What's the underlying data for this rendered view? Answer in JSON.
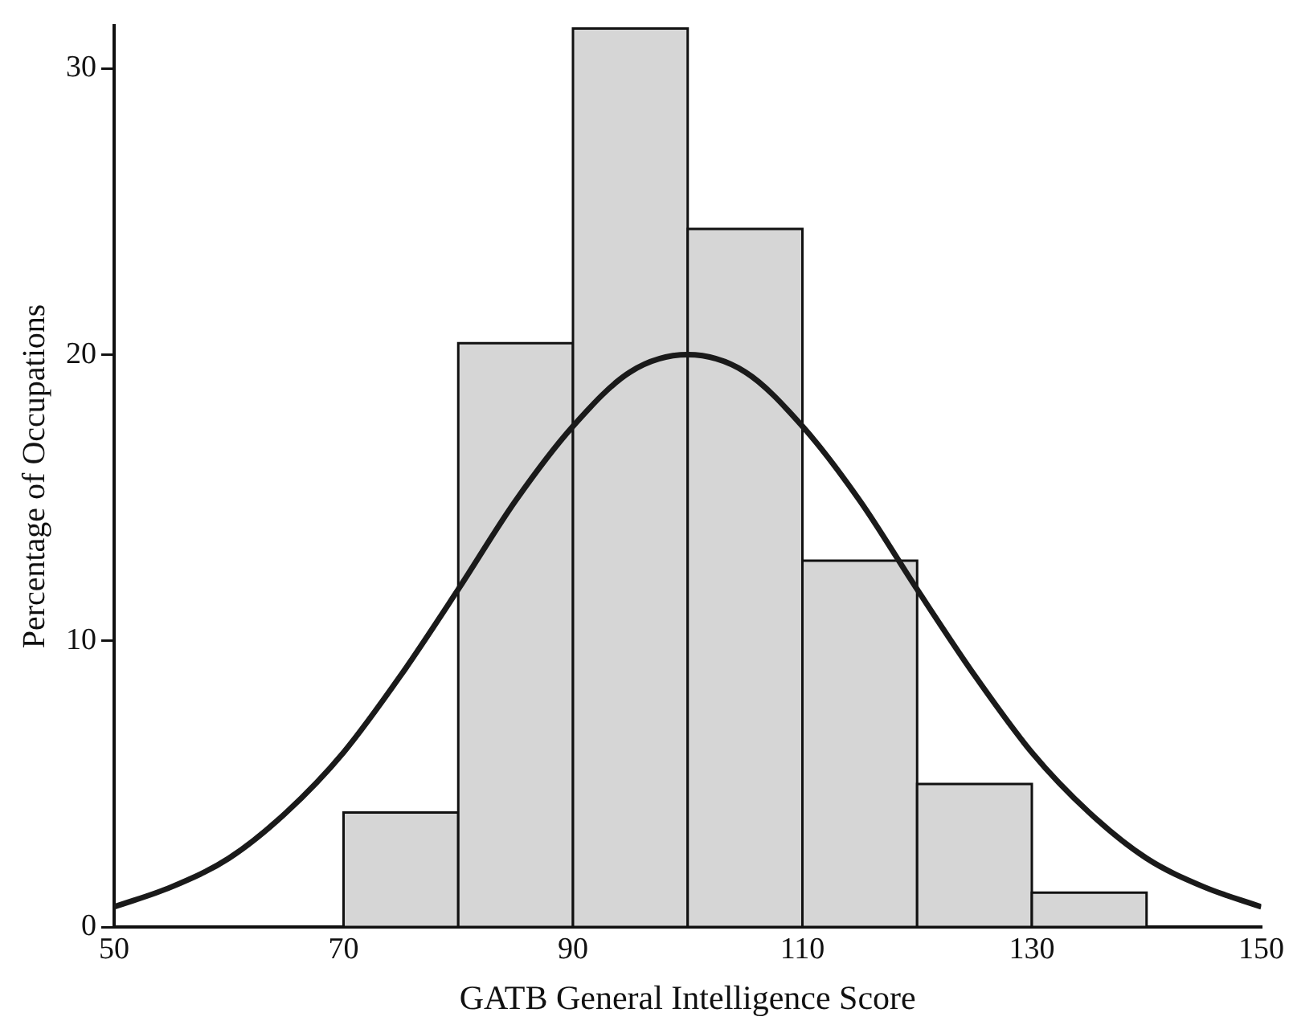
{
  "chart_data": {
    "type": "histogram",
    "xlabel": "GATB General Intelligence Score",
    "ylabel": "Percentage of Occupations",
    "bins": [
      50,
      60,
      70,
      80,
      90,
      100,
      110,
      120,
      130,
      140,
      150
    ],
    "values": [
      0,
      0,
      4,
      20.4,
      31.4,
      24.4,
      12.8,
      5,
      1.2,
      0
    ],
    "color": "#d6d6d6",
    "series": [
      {
        "type": "line",
        "color": "#1a1a1a",
        "x": [
          50,
          55,
          60,
          65,
          70,
          75,
          80,
          85,
          90,
          95,
          100,
          105,
          110,
          115,
          120,
          125,
          130,
          135,
          140,
          145,
          150
        ],
        "values": [
          0.7,
          1.4,
          2.4,
          4,
          6.1,
          8.8,
          11.8,
          14.9,
          17.5,
          19.4,
          20,
          19.4,
          17.5,
          14.9,
          11.8,
          8.8,
          6.1,
          4,
          2.4,
          1.4,
          0.7
        ]
      }
    ],
    "xlim": [
      50,
      150
    ],
    "xticks": [
      50,
      70,
      90,
      110,
      130,
      150
    ],
    "ylim": [
      0,
      31.5
    ],
    "yticks": [
      0,
      10,
      20,
      30
    ],
    "grid": false,
    "legend": false,
    "marker": "none",
    "line_style": "solid"
  }
}
